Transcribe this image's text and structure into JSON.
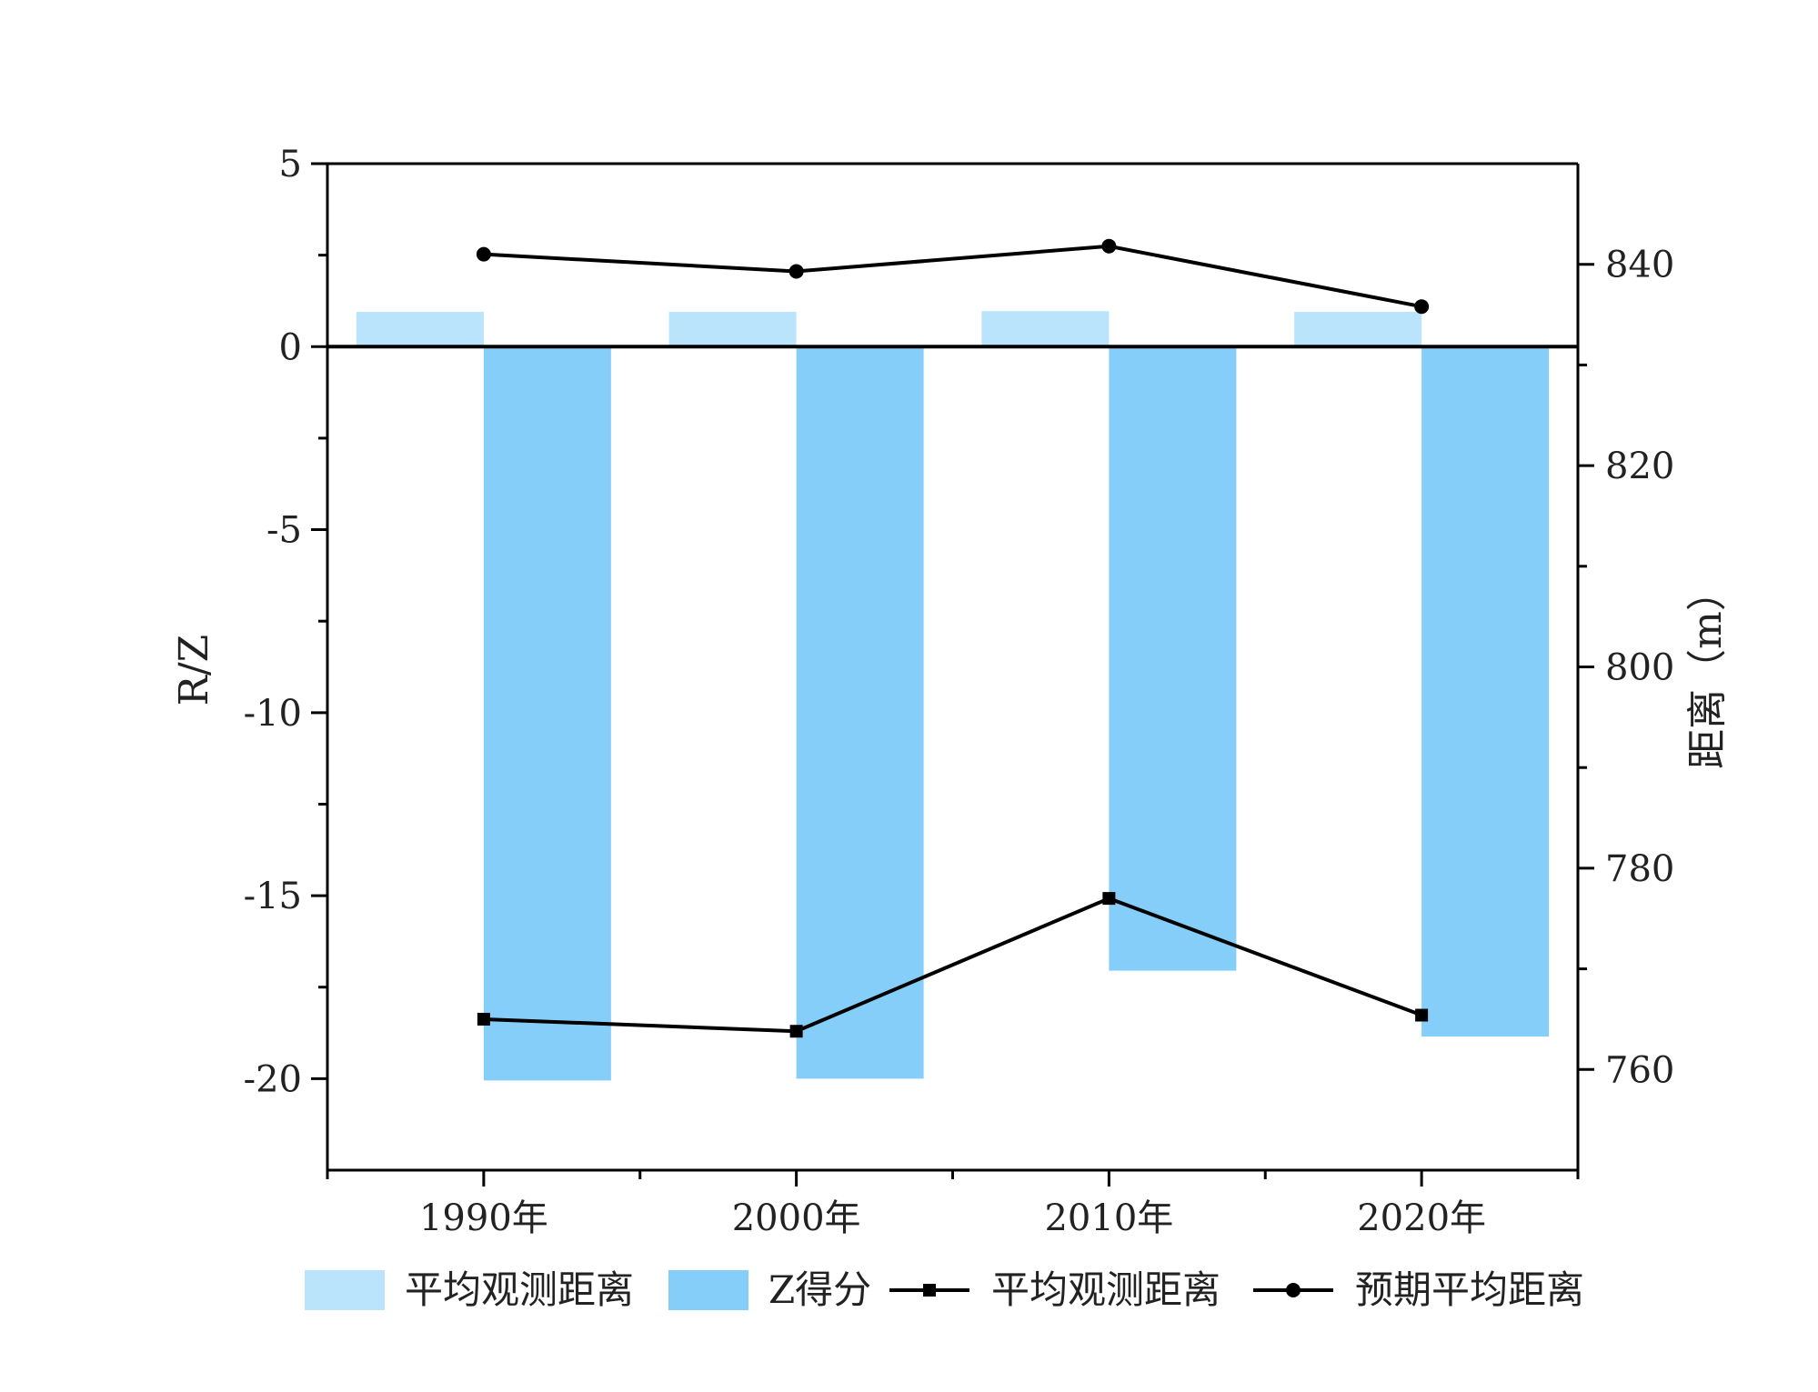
{
  "chart_data": {
    "type": "bar",
    "categories": [
      "1990年",
      "2000年",
      "2010年",
      "2020年"
    ],
    "left_axis": {
      "label": "R/Z",
      "ylim": [
        -22.5,
        5
      ],
      "ticks": [
        5,
        0,
        -5,
        -10,
        -15,
        -20
      ],
      "tick_labels": [
        "5",
        "0",
        "-5",
        "-10",
        "-15",
        "-20"
      ]
    },
    "right_axis": {
      "label": "距离（m）",
      "ylim": [
        750,
        850
      ],
      "ticks": [
        840,
        820,
        800,
        780,
        760
      ],
      "tick_labels": [
        "840",
        "820",
        "800",
        "780",
        "760"
      ]
    },
    "series": [
      {
        "name": "平均观测距离",
        "type": "bar",
        "axis": "left",
        "color": "#b9e4fb",
        "values": [
          0.95,
          0.95,
          0.97,
          0.95
        ]
      },
      {
        "name": "Z得分",
        "type": "bar",
        "axis": "left",
        "color": "#86cefa",
        "values": [
          -20.05,
          -20.0,
          -17.05,
          -18.85
        ]
      },
      {
        "name": "平均观测距离",
        "type": "line",
        "axis": "right",
        "marker": "square",
        "color": "#000000",
        "values": [
          765,
          763.8,
          777,
          765.4
        ]
      },
      {
        "name": "预期平均距离",
        "type": "line",
        "axis": "right",
        "marker": "circle",
        "color": "#000000",
        "values": [
          841,
          839.3,
          841.8,
          835.8
        ]
      }
    ],
    "grid": false,
    "legend_position": "bottom"
  }
}
